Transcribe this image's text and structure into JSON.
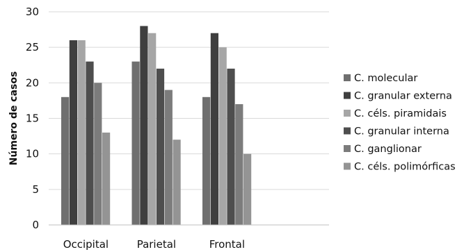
{
  "chart_data": {
    "type": "bar",
    "categories": [
      "Occipital",
      "Parietal",
      "Frontal"
    ],
    "series": [
      {
        "name": "C. molecular",
        "values": [
          18,
          23,
          18
        ],
        "color": "#6f6f6f"
      },
      {
        "name": "C. granular externa",
        "values": [
          26,
          28,
          27
        ],
        "color": "#3f3f3f"
      },
      {
        "name": "C. céls. piramidais",
        "values": [
          26,
          27,
          25
        ],
        "color": "#a6a6a6"
      },
      {
        "name": "C. granular interna",
        "values": [
          23,
          22,
          22
        ],
        "color": "#4e4e4e"
      },
      {
        "name": "C. ganglionar",
        "values": [
          20,
          19,
          17
        ],
        "color": "#7c7c7c"
      },
      {
        "name": "C. céls. polimórficas",
        "values": [
          13,
          12,
          10
        ],
        "color": "#949494"
      }
    ],
    "ylabel": "Número de casos",
    "xlabel": "",
    "ylim": [
      0,
      30
    ],
    "yticks": [
      0,
      5,
      10,
      15,
      20,
      25,
      30
    ],
    "grid": true,
    "legend": "right"
  }
}
